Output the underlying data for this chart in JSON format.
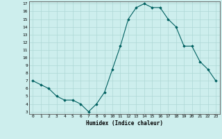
{
  "x": [
    0,
    1,
    2,
    3,
    4,
    5,
    6,
    7,
    8,
    9,
    10,
    11,
    12,
    13,
    14,
    15,
    16,
    17,
    18,
    19,
    20,
    21,
    22,
    23
  ],
  "y": [
    7.0,
    6.5,
    6.0,
    5.0,
    4.5,
    4.5,
    4.0,
    3.0,
    4.0,
    5.5,
    8.5,
    11.5,
    15.0,
    16.5,
    17.0,
    16.5,
    16.5,
    15.0,
    14.0,
    11.5,
    11.5,
    9.5,
    8.5,
    7.0
  ],
  "xlabel": "Humidex (Indice chaleur)",
  "bg_color": "#cdeeed",
  "grid_color": "#aed8d5",
  "line_color": "#006060",
  "marker_color": "#006060",
  "ylim_min": 3,
  "ylim_max": 17,
  "xlim_min": 0,
  "xlim_max": 23,
  "yticks": [
    3,
    4,
    5,
    6,
    7,
    8,
    9,
    10,
    11,
    12,
    13,
    14,
    15,
    16,
    17
  ],
  "xticks": [
    0,
    1,
    2,
    3,
    4,
    5,
    6,
    7,
    8,
    9,
    10,
    11,
    12,
    13,
    14,
    15,
    16,
    17,
    18,
    19,
    20,
    21,
    22,
    23
  ]
}
